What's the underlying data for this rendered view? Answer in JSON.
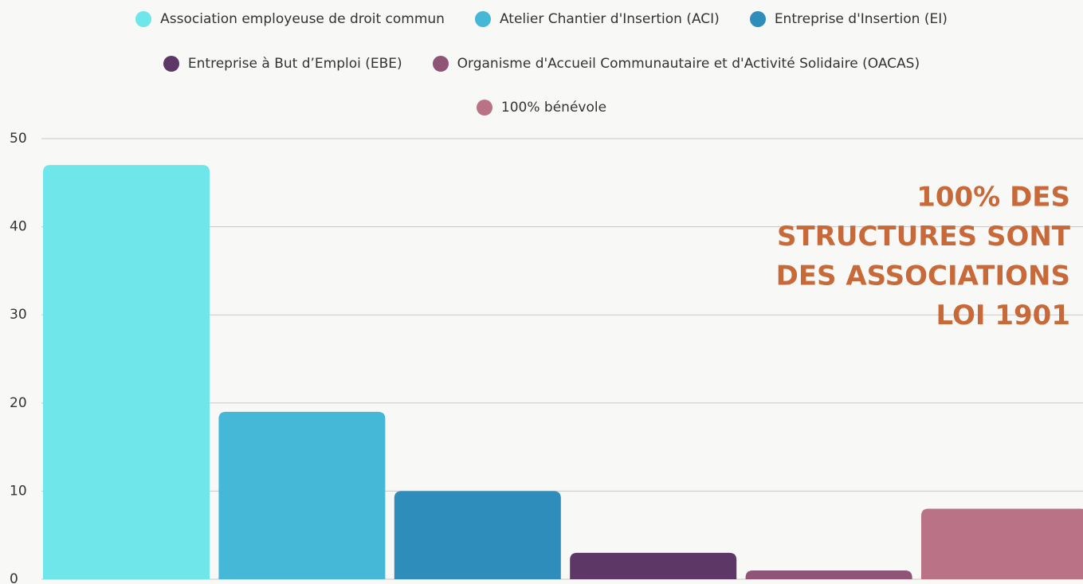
{
  "chart_data": {
    "type": "bar",
    "categories": [
      null
    ],
    "series": [
      {
        "name": "Association employeuse de droit commun",
        "color": "#6ee6ea",
        "values": [
          47
        ]
      },
      {
        "name": "Atelier Chantier d'Insertion (ACI)",
        "color": "#44b8d6",
        "values": [
          19
        ]
      },
      {
        "name": "Entreprise d'Insertion (EI)",
        "color": "#2e8dbb",
        "values": [
          10
        ]
      },
      {
        "name": "Entreprise à But d’Emploi (EBE)",
        "color": "#5d3866",
        "values": [
          3
        ]
      },
      {
        "name": "Organisme d'Accueil Communautaire et d'Activité Solidaire (OACAS)",
        "color": "#8e5576",
        "values": [
          1
        ]
      },
      {
        "name": "100% bénévole",
        "color": "#ba7386",
        "values": [
          8
        ]
      }
    ],
    "annotation": [
      "100% DES",
      "STRUCTURES SONT",
      "DES ASSOCIATIONS",
      "LOI 1901"
    ],
    "annotation_color": "#c8693a",
    "ylim": [
      0,
      50
    ],
    "yticks": [
      0,
      10,
      20,
      30,
      40,
      50
    ],
    "grid": true,
    "legend": "top"
  }
}
